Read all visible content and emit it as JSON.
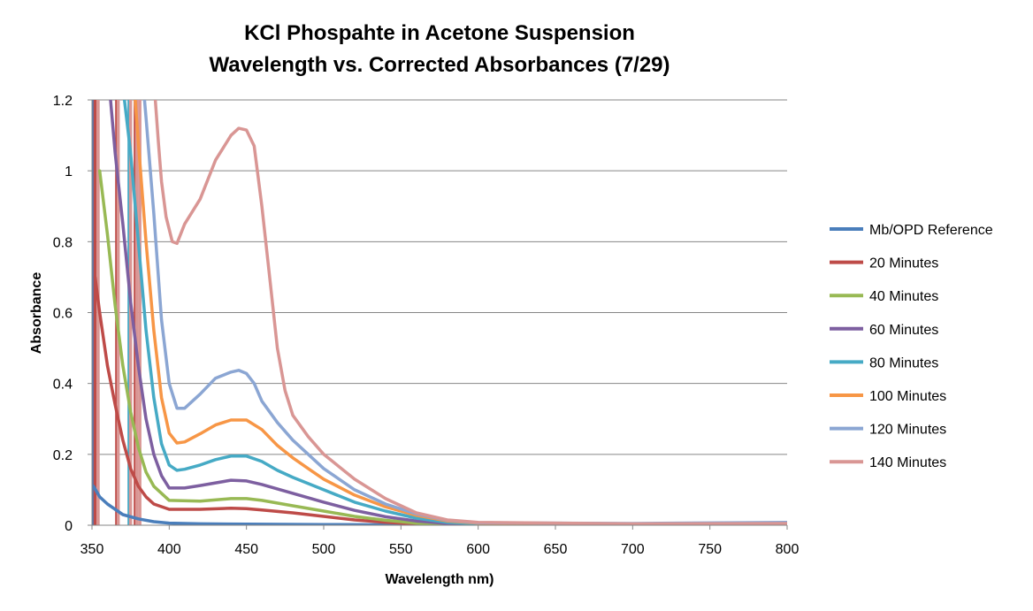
{
  "chart_data": {
    "type": "line",
    "title_line_1": "KCl Phospahte in Acetone Suspension",
    "title_line_2": "Wavelength vs. Corrected Absorbances (7/29)",
    "xlabel": "Wavelength nm)",
    "ylabel": "Absorbance",
    "xlim": [
      350,
      800
    ],
    "ylim": [
      0,
      1.2
    ],
    "x_ticks": [
      350,
      400,
      450,
      500,
      550,
      600,
      650,
      700,
      750,
      800
    ],
    "y_ticks": [
      0,
      0.2,
      0.4,
      0.6,
      0.8,
      1,
      1.2
    ],
    "grid": "horizontal major gridlines",
    "legend_position": "right",
    "series": [
      {
        "name": "Mb/OPD Reference",
        "color": "#4a7ebb",
        "points": [
          [
            351,
            0.11
          ],
          [
            355,
            0.08
          ],
          [
            360,
            0.06
          ],
          [
            365,
            0.045
          ],
          [
            370,
            0.03
          ],
          [
            380,
            0.018
          ],
          [
            390,
            0.01
          ],
          [
            400,
            0.006
          ],
          [
            420,
            0.004
          ],
          [
            450,
            0.003
          ],
          [
            500,
            0.002
          ],
          [
            550,
            0.001
          ],
          [
            600,
            0
          ],
          [
            700,
            0
          ],
          [
            800,
            0
          ]
        ]
      },
      {
        "name": "20 Minutes",
        "color": "#be4b48",
        "points": [
          [
            352,
            0.7
          ],
          [
            355,
            0.6
          ],
          [
            360,
            0.45
          ],
          [
            365,
            0.34
          ],
          [
            370,
            0.24
          ],
          [
            375,
            0.16
          ],
          [
            380,
            0.11
          ],
          [
            385,
            0.08
          ],
          [
            390,
            0.06
          ],
          [
            400,
            0.045
          ],
          [
            420,
            0.045
          ],
          [
            440,
            0.048
          ],
          [
            450,
            0.047
          ],
          [
            460,
            0.043
          ],
          [
            480,
            0.035
          ],
          [
            500,
            0.025
          ],
          [
            520,
            0.015
          ],
          [
            540,
            0.008
          ],
          [
            560,
            0.004
          ],
          [
            600,
            0.002
          ],
          [
            700,
            0.003
          ],
          [
            800,
            0.005
          ]
        ]
      },
      {
        "name": "40 Minutes",
        "color": "#98b954",
        "points": [
          [
            355,
            1.0
          ],
          [
            360,
            0.82
          ],
          [
            365,
            0.62
          ],
          [
            370,
            0.45
          ],
          [
            375,
            0.32
          ],
          [
            380,
            0.22
          ],
          [
            385,
            0.15
          ],
          [
            390,
            0.11
          ],
          [
            400,
            0.07
          ],
          [
            420,
            0.068
          ],
          [
            440,
            0.075
          ],
          [
            450,
            0.075
          ],
          [
            460,
            0.07
          ],
          [
            480,
            0.055
          ],
          [
            500,
            0.04
          ],
          [
            520,
            0.025
          ],
          [
            540,
            0.014
          ],
          [
            560,
            0.006
          ],
          [
            580,
            0.003
          ],
          [
            600,
            0.002
          ],
          [
            700,
            0.003
          ],
          [
            800,
            0.007
          ]
        ]
      },
      {
        "name": "60 Minutes",
        "color": "#7d5fa0",
        "points": [
          [
            362,
            1.2
          ],
          [
            365,
            1.05
          ],
          [
            370,
            0.85
          ],
          [
            375,
            0.63
          ],
          [
            380,
            0.45
          ],
          [
            385,
            0.3
          ],
          [
            390,
            0.2
          ],
          [
            395,
            0.14
          ],
          [
            400,
            0.105
          ],
          [
            410,
            0.105
          ],
          [
            420,
            0.112
          ],
          [
            440,
            0.127
          ],
          [
            450,
            0.125
          ],
          [
            460,
            0.115
          ],
          [
            480,
            0.09
          ],
          [
            500,
            0.065
          ],
          [
            520,
            0.042
          ],
          [
            540,
            0.024
          ],
          [
            560,
            0.012
          ],
          [
            580,
            0.005
          ],
          [
            600,
            0.003
          ],
          [
            700,
            0.004
          ],
          [
            800,
            0.006
          ]
        ]
      },
      {
        "name": "80 Minutes",
        "color": "#46aac5",
        "points": [
          [
            371,
            1.2
          ],
          [
            375,
            1.05
          ],
          [
            380,
            0.8
          ],
          [
            385,
            0.55
          ],
          [
            390,
            0.36
          ],
          [
            395,
            0.23
          ],
          [
            400,
            0.17
          ],
          [
            405,
            0.155
          ],
          [
            410,
            0.158
          ],
          [
            420,
            0.17
          ],
          [
            430,
            0.185
          ],
          [
            440,
            0.195
          ],
          [
            450,
            0.195
          ],
          [
            460,
            0.18
          ],
          [
            470,
            0.155
          ],
          [
            480,
            0.135
          ],
          [
            500,
            0.1
          ],
          [
            520,
            0.065
          ],
          [
            540,
            0.04
          ],
          [
            560,
            0.02
          ],
          [
            580,
            0.008
          ],
          [
            600,
            0.004
          ],
          [
            700,
            0.004
          ],
          [
            800,
            0.006
          ]
        ]
      },
      {
        "name": "100 Minutes",
        "color": "#f79646",
        "points": [
          [
            378,
            1.2
          ],
          [
            380,
            1.08
          ],
          [
            385,
            0.8
          ],
          [
            390,
            0.55
          ],
          [
            395,
            0.36
          ],
          [
            400,
            0.26
          ],
          [
            405,
            0.232
          ],
          [
            410,
            0.235
          ],
          [
            420,
            0.258
          ],
          [
            430,
            0.283
          ],
          [
            440,
            0.297
          ],
          [
            450,
            0.297
          ],
          [
            460,
            0.27
          ],
          [
            470,
            0.225
          ],
          [
            480,
            0.19
          ],
          [
            490,
            0.16
          ],
          [
            500,
            0.13
          ],
          [
            520,
            0.085
          ],
          [
            540,
            0.052
          ],
          [
            560,
            0.028
          ],
          [
            580,
            0.012
          ],
          [
            600,
            0.006
          ],
          [
            700,
            0.004
          ],
          [
            800,
            0.007
          ]
        ]
      },
      {
        "name": "120 Minutes",
        "color": "#8ba6d3",
        "points": [
          [
            384,
            1.2
          ],
          [
            385,
            1.15
          ],
          [
            390,
            0.88
          ],
          [
            395,
            0.58
          ],
          [
            400,
            0.4
          ],
          [
            405,
            0.33
          ],
          [
            410,
            0.33
          ],
          [
            420,
            0.37
          ],
          [
            430,
            0.415
          ],
          [
            440,
            0.432
          ],
          [
            445,
            0.437
          ],
          [
            450,
            0.428
          ],
          [
            455,
            0.4
          ],
          [
            460,
            0.35
          ],
          [
            470,
            0.29
          ],
          [
            480,
            0.24
          ],
          [
            490,
            0.2
          ],
          [
            500,
            0.16
          ],
          [
            520,
            0.1
          ],
          [
            540,
            0.06
          ],
          [
            560,
            0.032
          ],
          [
            580,
            0.014
          ],
          [
            600,
            0.007
          ],
          [
            700,
            0.005
          ],
          [
            800,
            0.008
          ]
        ]
      },
      {
        "name": "140 Minutes",
        "color": "#d99694",
        "points": [
          [
            391,
            1.2
          ],
          [
            393,
            1.08
          ],
          [
            395,
            0.97
          ],
          [
            398,
            0.87
          ],
          [
            402,
            0.8
          ],
          [
            405,
            0.795
          ],
          [
            410,
            0.85
          ],
          [
            420,
            0.92
          ],
          [
            430,
            1.03
          ],
          [
            440,
            1.1
          ],
          [
            445,
            1.12
          ],
          [
            450,
            1.115
          ],
          [
            455,
            1.07
          ],
          [
            460,
            0.9
          ],
          [
            465,
            0.7
          ],
          [
            470,
            0.5
          ],
          [
            475,
            0.38
          ],
          [
            480,
            0.31
          ],
          [
            490,
            0.25
          ],
          [
            500,
            0.2
          ],
          [
            520,
            0.13
          ],
          [
            540,
            0.075
          ],
          [
            560,
            0.035
          ],
          [
            580,
            0.015
          ],
          [
            600,
            0.008
          ],
          [
            700,
            0.004
          ],
          [
            800,
            0.005
          ]
        ]
      }
    ],
    "vertical_artifacts": [
      {
        "series": "Mb/OPD Reference",
        "x": 351,
        "color": "#4a7ebb"
      },
      {
        "series": "20 Minutes",
        "x": 352,
        "color": "#be4b48"
      },
      {
        "series": "140 Minutes",
        "x": 354,
        "color": "#d99694"
      },
      {
        "series": "20 Minutes",
        "x": 366,
        "color": "#be4b48"
      },
      {
        "series": "140 Minutes",
        "x": 367,
        "color": "#d99694"
      },
      {
        "series": "80 Minutes",
        "x": 374,
        "color": "#46aac5"
      },
      {
        "series": "140 Minutes",
        "x": 375,
        "color": "#d99694"
      },
      {
        "series": "20 Minutes",
        "x": 378,
        "color": "#be4b48"
      },
      {
        "series": "140 Minutes",
        "x": 379,
        "color": "#d99694"
      },
      {
        "series": "140 Minutes",
        "x": 381,
        "color": "#d99694"
      }
    ]
  }
}
